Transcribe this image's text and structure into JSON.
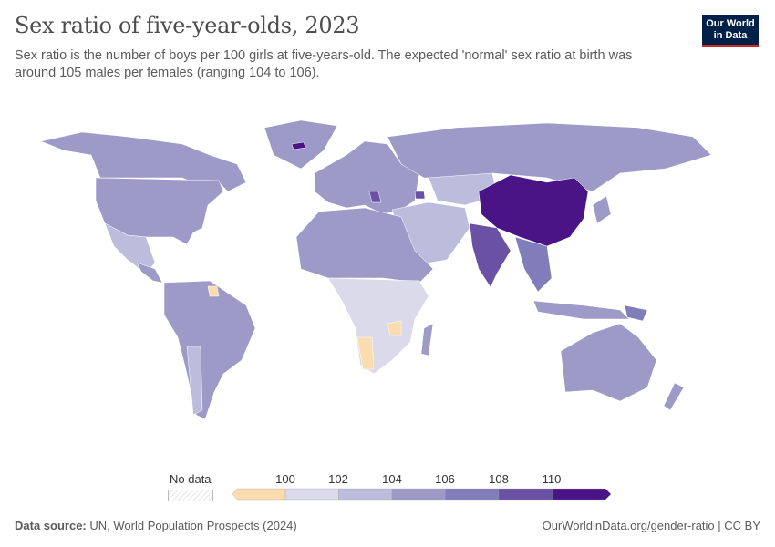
{
  "header": {
    "title": "Sex ratio of five-year-olds, 2023",
    "subtitle": "Sex ratio is the number of boys per 100 girls at five-years-old. The expected 'normal' sex ratio at birth was around 105 males per females (ranging 104 to 106).",
    "logo_line1": "Our World",
    "logo_line2": "in Data"
  },
  "legend": {
    "no_data_label": "No data",
    "ticks": [
      "100",
      "102",
      "104",
      "106",
      "108",
      "110"
    ],
    "bins": [
      {
        "range": "<100",
        "color": "#fbdcaf"
      },
      {
        "range": "100-102",
        "color": "#dadaeb"
      },
      {
        "range": "102-104",
        "color": "#bcbddc"
      },
      {
        "range": "104-106",
        "color": "#9e9ac8"
      },
      {
        "range": "106-108",
        "color": "#807dba"
      },
      {
        "range": "108-110",
        "color": "#6a51a3"
      },
      {
        "range": ">110",
        "color": "#4a1486"
      }
    ]
  },
  "footer": {
    "source_label": "Data source:",
    "source": "UN, World Population Prospects (2024)",
    "link": "OurWorldinData.org/gender-ratio | CC BY"
  }
}
